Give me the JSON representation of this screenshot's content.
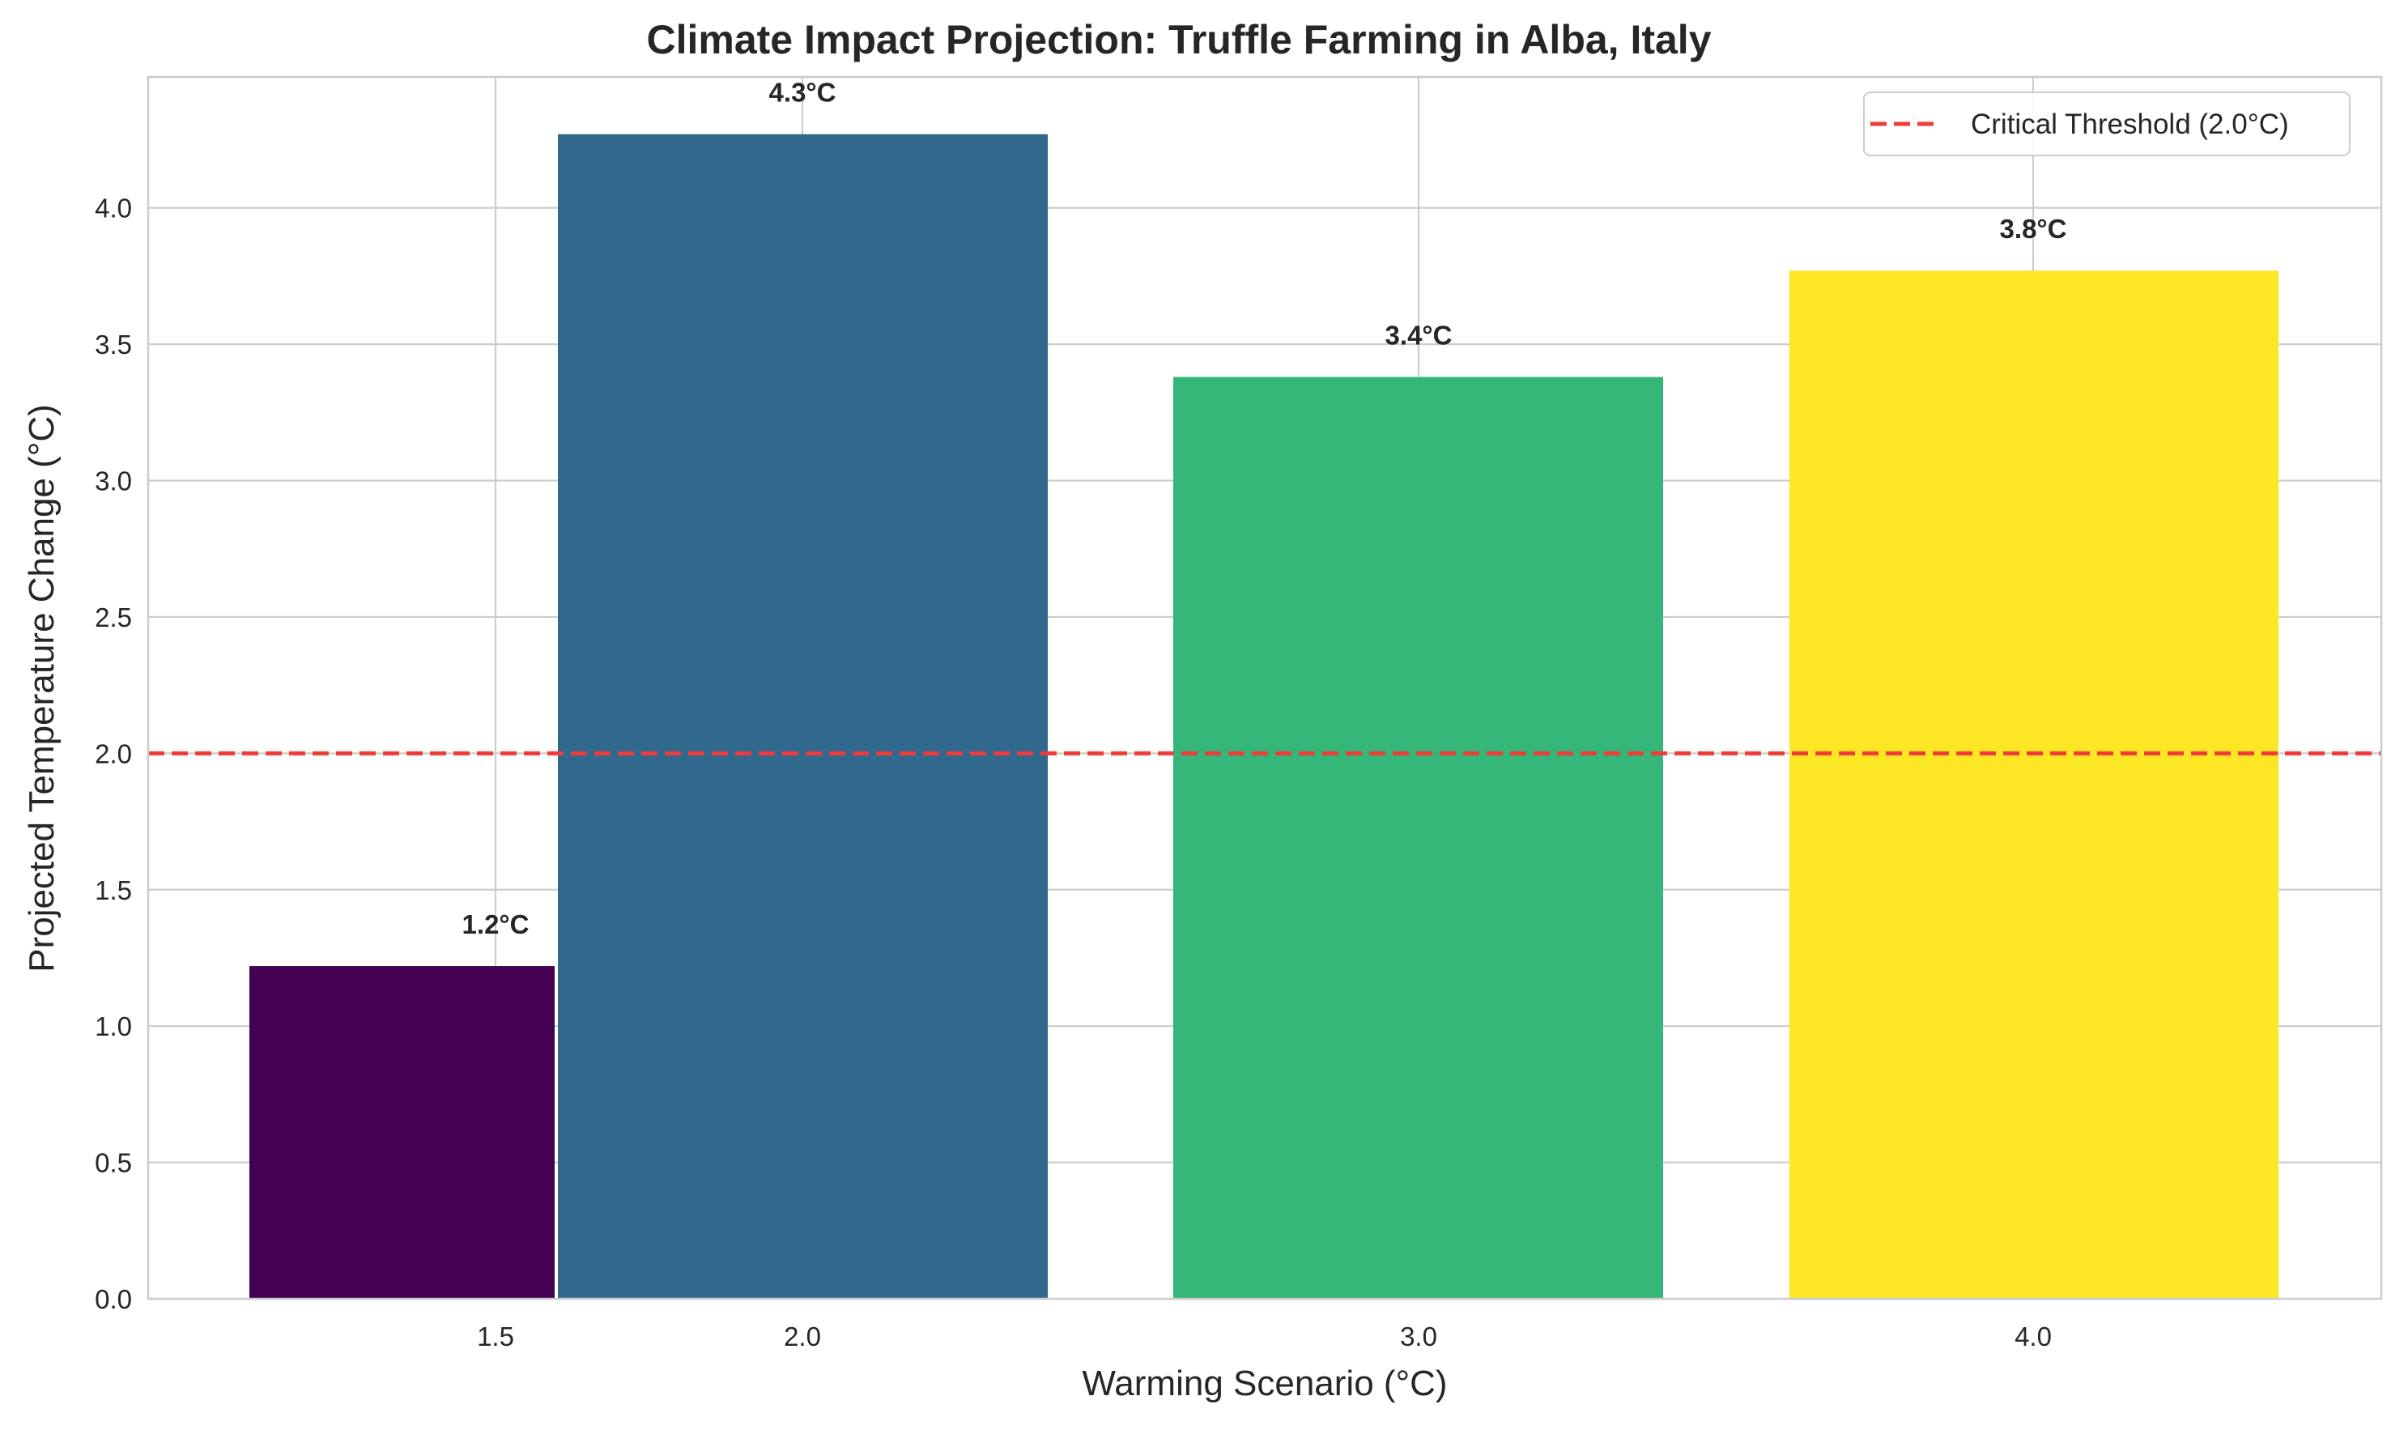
{
  "chart_data": {
    "type": "bar",
    "title": "Climate Impact Projection: Truffle Farming in Alba, Italy",
    "xlabel": "Warming Scenario (°C)",
    "ylabel": "Projected Temperature Change (°C)",
    "x": [
      1.5,
      2.0,
      3.0,
      4.0
    ],
    "x_tick_labels": [
      "1.5",
      "2.0",
      "3.0",
      "4.0"
    ],
    "values": [
      1.22,
      4.27,
      3.38,
      3.77
    ],
    "data_labels": [
      "1.2°C",
      "4.3°C",
      "3.4°C",
      "3.8°C"
    ],
    "bar_colors": [
      "#440154",
      "#31688e",
      "#35b779",
      "#fde725"
    ],
    "ylim": [
      0,
      4.48
    ],
    "y_ticks": [
      0.0,
      0.5,
      1.0,
      1.5,
      2.0,
      2.5,
      3.0,
      3.5,
      4.0
    ],
    "y_tick_labels": [
      "0.0",
      "0.5",
      "1.0",
      "1.5",
      "2.0",
      "2.5",
      "3.0",
      "3.5",
      "4.0"
    ],
    "threshold": {
      "value": 2.0,
      "label": "Critical Threshold (2.0°C)",
      "color": "#f03b3b"
    },
    "grid": true,
    "legend_position": "top-right"
  }
}
